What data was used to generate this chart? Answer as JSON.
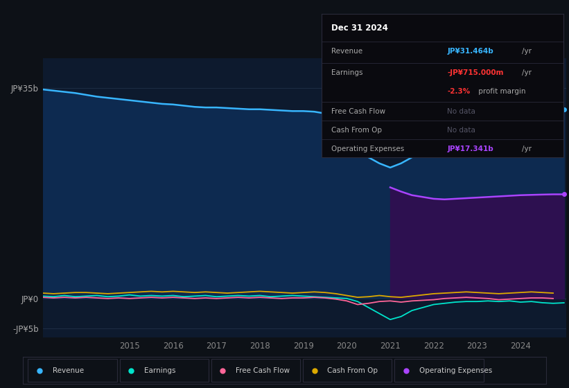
{
  "bg_color": "#0d1117",
  "plot_bg_color": "#0d1a2e",
  "tooltip": {
    "date": "Dec 31 2024",
    "revenue_label": "Revenue",
    "revenue_value": "JP¥31.464b",
    "revenue_unit": "/yr",
    "revenue_color": "#38b6ff",
    "earnings_label": "Earnings",
    "earnings_value": "-JP¥715.000m",
    "earnings_unit": "/yr",
    "earnings_color": "#ff3333",
    "margin_value": "-2.3%",
    "margin_text": " profit margin",
    "margin_color": "#ff3333",
    "fcf_label": "Free Cash Flow",
    "fcf_value": "No data",
    "cashop_label": "Cash From Op",
    "cashop_value": "No data",
    "opex_label": "Operating Expenses",
    "opex_value": "JP¥17.341b",
    "opex_unit": "/yr",
    "opex_color": "#aa44ff"
  },
  "x_years": [
    2013.0,
    2013.25,
    2013.5,
    2013.75,
    2014.0,
    2014.25,
    2014.5,
    2014.75,
    2015.0,
    2015.25,
    2015.5,
    2015.75,
    2016.0,
    2016.25,
    2016.5,
    2016.75,
    2017.0,
    2017.25,
    2017.5,
    2017.75,
    2018.0,
    2018.25,
    2018.5,
    2018.75,
    2019.0,
    2019.25,
    2019.5,
    2019.75,
    2020.0,
    2020.25,
    2020.5,
    2020.75,
    2021.0,
    2021.25,
    2021.5,
    2021.75,
    2022.0,
    2022.25,
    2022.5,
    2022.75,
    2023.0,
    2023.25,
    2023.5,
    2023.75,
    2024.0,
    2024.25,
    2024.5,
    2024.75,
    2025.0
  ],
  "revenue": [
    34.8,
    34.6,
    34.4,
    34.2,
    33.9,
    33.6,
    33.4,
    33.2,
    33.0,
    32.8,
    32.6,
    32.4,
    32.3,
    32.1,
    31.9,
    31.8,
    31.8,
    31.7,
    31.6,
    31.5,
    31.5,
    31.4,
    31.3,
    31.2,
    31.2,
    31.1,
    30.8,
    30.5,
    30.0,
    26.5,
    23.5,
    22.5,
    21.8,
    22.5,
    23.5,
    25.0,
    26.5,
    27.0,
    27.5,
    28.0,
    28.5,
    29.0,
    29.5,
    30.0,
    30.5,
    31.0,
    31.3,
    31.5,
    31.464
  ],
  "earnings": [
    0.4,
    0.3,
    0.5,
    0.3,
    0.4,
    0.5,
    0.3,
    0.4,
    0.6,
    0.4,
    0.5,
    0.4,
    0.5,
    0.3,
    0.4,
    0.5,
    0.3,
    0.4,
    0.5,
    0.4,
    0.5,
    0.3,
    0.4,
    0.5,
    0.4,
    0.3,
    0.2,
    0.1,
    0.0,
    -0.5,
    -1.5,
    -2.5,
    -3.5,
    -3.0,
    -2.0,
    -1.5,
    -1.0,
    -0.8,
    -0.6,
    -0.5,
    -0.5,
    -0.4,
    -0.5,
    -0.4,
    -0.6,
    -0.5,
    -0.7,
    -0.8,
    -0.715
  ],
  "free_cash_flow": [
    0.2,
    0.1,
    0.2,
    0.1,
    0.2,
    0.1,
    0.0,
    0.1,
    0.0,
    0.1,
    0.2,
    0.1,
    0.2,
    0.1,
    0.0,
    0.1,
    0.0,
    0.1,
    0.2,
    0.1,
    0.2,
    0.1,
    0.0,
    0.1,
    0.1,
    0.2,
    0.1,
    -0.1,
    -0.4,
    -1.0,
    -0.8,
    -0.5,
    -0.4,
    -0.6,
    -0.4,
    -0.3,
    -0.2,
    0.0,
    0.1,
    0.2,
    0.1,
    0.0,
    -0.2,
    -0.1,
    0.0,
    0.1,
    0.1,
    0.0,
    null
  ],
  "cash_from_op": [
    0.9,
    0.8,
    0.9,
    1.0,
    1.0,
    0.9,
    0.8,
    0.9,
    1.0,
    1.1,
    1.2,
    1.1,
    1.2,
    1.1,
    1.0,
    1.1,
    1.0,
    0.9,
    1.0,
    1.1,
    1.2,
    1.1,
    1.0,
    0.9,
    1.0,
    1.1,
    1.0,
    0.8,
    0.5,
    0.2,
    0.3,
    0.5,
    0.3,
    0.2,
    0.4,
    0.6,
    0.8,
    0.9,
    1.0,
    1.1,
    1.0,
    0.9,
    0.8,
    0.9,
    1.0,
    1.1,
    1.0,
    0.9,
    null
  ],
  "operating_expenses": [
    null,
    null,
    null,
    null,
    null,
    null,
    null,
    null,
    null,
    null,
    null,
    null,
    null,
    null,
    null,
    null,
    null,
    null,
    null,
    null,
    null,
    null,
    null,
    null,
    null,
    null,
    null,
    null,
    null,
    null,
    null,
    null,
    18.5,
    17.8,
    17.2,
    16.9,
    16.6,
    16.5,
    16.6,
    16.7,
    16.8,
    16.9,
    17.0,
    17.1,
    17.2,
    17.25,
    17.3,
    17.341,
    17.341
  ],
  "ylim": [
    -6.5,
    40
  ],
  "ytick_vals": [
    -5,
    0,
    35
  ],
  "ytick_labels": [
    "-JP¥5b",
    "JP¥0",
    "JP¥35b"
  ],
  "xtick_years": [
    2015,
    2016,
    2017,
    2018,
    2019,
    2020,
    2021,
    2022,
    2023,
    2024
  ],
  "legend_items": [
    {
      "label": "Revenue",
      "color": "#38b6ff"
    },
    {
      "label": "Earnings",
      "color": "#00e5cc"
    },
    {
      "label": "Free Cash Flow",
      "color": "#ff6699"
    },
    {
      "label": "Cash From Op",
      "color": "#ddaa00"
    },
    {
      "label": "Operating Expenses",
      "color": "#aa44ff"
    }
  ],
  "revenue_color": "#38b6ff",
  "earnings_color": "#00e5cc",
  "fcf_color": "#ff6699",
  "cashop_color": "#ddaa00",
  "opex_color": "#aa44ff",
  "opex_fill_color": "#2d1050",
  "revenue_fill_color": "#0d2a50",
  "grid_color": "#1e2e45",
  "nodata_color": "#555566"
}
